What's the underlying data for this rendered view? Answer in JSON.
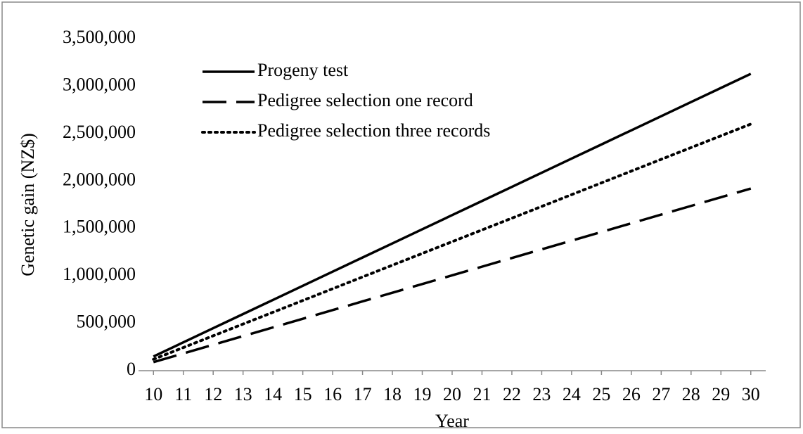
{
  "chart_data": {
    "type": "line",
    "xlabel": "Year",
    "ylabel": "Genetic gain (NZ$)",
    "x": [
      10,
      11,
      12,
      13,
      14,
      15,
      16,
      17,
      18,
      19,
      20,
      21,
      22,
      23,
      24,
      25,
      26,
      27,
      28,
      29,
      30
    ],
    "xlim": [
      9.5,
      30.5
    ],
    "xticks": [
      10,
      11,
      12,
      13,
      14,
      15,
      16,
      17,
      18,
      19,
      20,
      21,
      22,
      23,
      24,
      25,
      26,
      27,
      28,
      29,
      30
    ],
    "ylim": [
      0,
      3500000
    ],
    "yticks": [
      0,
      {
        "value": 500000,
        "label": "500,000"
      },
      {
        "value": 1000000,
        "label": "1,000,000"
      },
      {
        "value": 1500000,
        "label": "1,500,000"
      },
      {
        "value": 2000000,
        "label": "2,000,000"
      },
      {
        "value": 2500000,
        "label": "2,500,000"
      },
      {
        "value": 3000000,
        "label": "3,000,000"
      },
      {
        "value": 3500000,
        "label": "3,500,000"
      }
    ],
    "grid": false,
    "legend": "upper left",
    "series": [
      {
        "name": "Progeny test",
        "color": "#000000",
        "style": "solid",
        "values": [
          150000,
          299000,
          448000,
          597000,
          746000,
          895000,
          1044000,
          1193000,
          1342000,
          1491000,
          1640000,
          1789000,
          1938000,
          2087000,
          2236000,
          2385000,
          2534000,
          2683000,
          2832000,
          2981000,
          3130000
        ]
      },
      {
        "name": "Pedigree selection one record",
        "color": "#000000",
        "style": "dashed",
        "values": [
          90000,
          181500,
          273000,
          364500,
          456000,
          547500,
          639000,
          730500,
          822000,
          913500,
          1005000,
          1096500,
          1188000,
          1279500,
          1371000,
          1462500,
          1554000,
          1645500,
          1737000,
          1828500,
          1920000
        ]
      },
      {
        "name": "Pedigree selection three records",
        "color": "#000000",
        "style": "dotted",
        "values": [
          120000,
          244000,
          368000,
          492000,
          616000,
          740000,
          864000,
          988000,
          1112000,
          1236000,
          1360000,
          1484000,
          1608000,
          1732000,
          1856000,
          1980000,
          2104000,
          2228000,
          2352000,
          2476000,
          2600000
        ]
      }
    ]
  }
}
